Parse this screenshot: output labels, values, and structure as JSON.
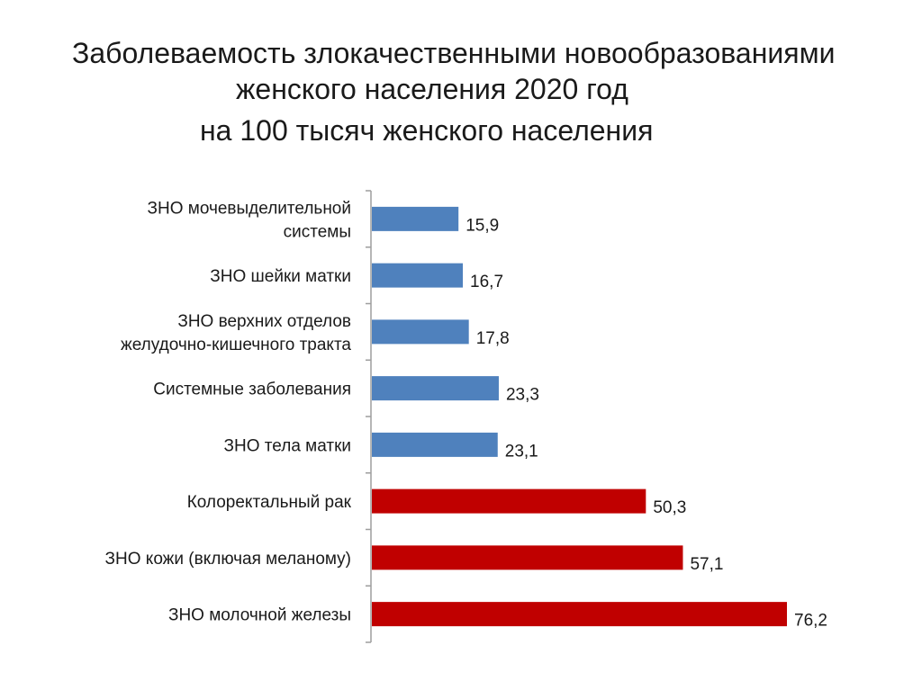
{
  "title": {
    "line1": "Заболеваемость злокачественными новообразованиями",
    "line2": "женского населения 2020 год",
    "line3": "на 100 тысяч женского населения"
  },
  "colors": {
    "blue": "#4f81bd",
    "red": "#c00000",
    "axis": "#9e9e9e"
  },
  "chart_data": {
    "type": "bar",
    "orientation": "horizontal",
    "categories": [
      [
        "ЗНО мочевыделительной",
        "системы"
      ],
      [
        "ЗНО шейки матки"
      ],
      [
        "ЗНО верхних отделов",
        "желудочно-кишечного тракта"
      ],
      [
        "Системные заболевания"
      ],
      [
        "ЗНО тела матки"
      ],
      [
        "Колоректальный рак"
      ],
      [
        "ЗНО кожи (включая меланому)"
      ],
      [
        "ЗНО молочной железы"
      ]
    ],
    "values": [
      15.9,
      16.7,
      17.8,
      23.3,
      23.1,
      50.3,
      57.1,
      76.2
    ],
    "value_labels": [
      "15,9",
      "16,7",
      "17,8",
      "23,3",
      "23,1",
      "50,3",
      "57,1",
      "76,2"
    ],
    "bar_colors": [
      "blue",
      "blue",
      "blue",
      "blue",
      "blue",
      "red",
      "red",
      "red"
    ],
    "xlim": [
      0,
      80
    ],
    "grid": false,
    "legend": "none"
  }
}
